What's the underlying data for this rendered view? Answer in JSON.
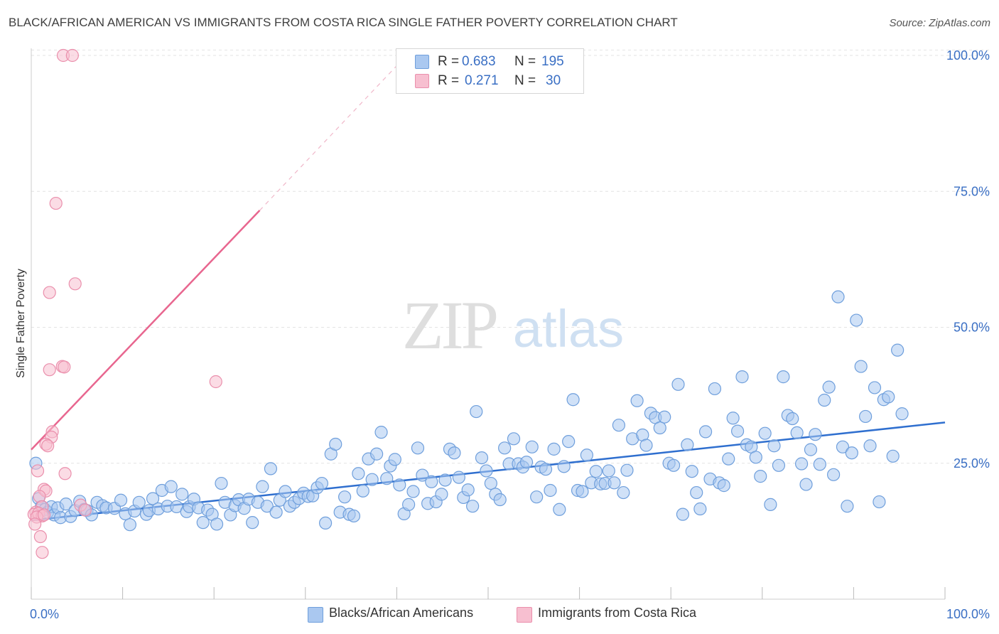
{
  "title": "BLACK/AFRICAN AMERICAN VS IMMIGRANTS FROM COSTA RICA SINGLE FATHER POVERTY CORRELATION CHART",
  "source": "Source: ZipAtlas.com",
  "watermark": {
    "zip": "ZIP",
    "atlas": "atlas"
  },
  "legend": {
    "rows": [
      {
        "r_label": "R =",
        "r_value": "0.683",
        "n_label": "N =",
        "n_value": "195"
      },
      {
        "r_label": "R =",
        "r_value": "0.271",
        "n_label": "N =",
        "n_value": "30"
      }
    ]
  },
  "bottom_legend": {
    "blue_label": "Blacks/African Americans",
    "pink_label": "Immigrants from Costa Rica"
  },
  "colors": {
    "blue_fill": "#aac8f0",
    "blue_stroke": "#6f9fdc",
    "blue_line": "#2f6fcf",
    "pink_fill": "#f7bfd0",
    "pink_stroke": "#ea8fac",
    "pink_line": "#e8668f",
    "axis_text": "#3a6fc4",
    "grid": "#e3e3e3"
  },
  "chart_data": {
    "type": "scatter",
    "title": "BLACK/AFRICAN AMERICAN VS IMMIGRANTS FROM COSTA RICA SINGLE FATHER POVERTY CORRELATION CHART",
    "xlabel": "",
    "ylabel": "Single Father Poverty",
    "xlim": [
      0,
      100
    ],
    "ylim": [
      0,
      102
    ],
    "x_tick_labels": [
      "0.0%",
      "100.0%"
    ],
    "y_ticks": [
      25,
      50,
      75,
      100
    ],
    "y_tick_labels": [
      "25.0%",
      "50.0%",
      "75.0%",
      "100.0%"
    ],
    "grid": true,
    "series": [
      {
        "name": "Blacks/African Americans",
        "color": "#6f9fdc",
        "trend": {
          "x": [
            0,
            100
          ],
          "y": [
            14.5,
            32.5
          ]
        },
        "points": [
          [
            0.5,
            25
          ],
          [
            0.8,
            18.5
          ],
          [
            1.1,
            17
          ],
          [
            1.5,
            16.5
          ],
          [
            1.8,
            16
          ],
          [
            2.2,
            17
          ],
          [
            2.5,
            15.5
          ],
          [
            2.9,
            16.8
          ],
          [
            3.2,
            15
          ],
          [
            3.8,
            17.5
          ],
          [
            4.3,
            15.2
          ],
          [
            4.8,
            16.3
          ],
          [
            5.3,
            18
          ],
          [
            5.8,
            16.5
          ],
          [
            6.1,
            16.3
          ],
          [
            6.6,
            15.5
          ],
          [
            7.2,
            17.8
          ],
          [
            7.8,
            17.2
          ],
          [
            8.2,
            16.8
          ],
          [
            9.1,
            16.7
          ],
          [
            9.8,
            18.2
          ],
          [
            10.3,
            15.7
          ],
          [
            10.8,
            13.7
          ],
          [
            11.3,
            16.2
          ],
          [
            11.8,
            17.8
          ],
          [
            12.6,
            15.6
          ],
          [
            12.9,
            16.3
          ],
          [
            13.3,
            18.5
          ],
          [
            13.9,
            16.6
          ],
          [
            14.3,
            20
          ],
          [
            14.9,
            17.1
          ],
          [
            15.3,
            20.7
          ],
          [
            15.9,
            17
          ],
          [
            16.5,
            19.3
          ],
          [
            17,
            16.1
          ],
          [
            17.3,
            17
          ],
          [
            17.8,
            18.4
          ],
          [
            18.3,
            16.8
          ],
          [
            18.8,
            14.1
          ],
          [
            19.3,
            16.4
          ],
          [
            19.8,
            15.6
          ],
          [
            20.3,
            13.8
          ],
          [
            20.8,
            21.3
          ],
          [
            21.2,
            17.8
          ],
          [
            21.8,
            15.5
          ],
          [
            22.3,
            17.2
          ],
          [
            22.7,
            18.3
          ],
          [
            23.3,
            16.7
          ],
          [
            23.8,
            18.4
          ],
          [
            24.2,
            14.1
          ],
          [
            24.8,
            17.8
          ],
          [
            25.3,
            20.7
          ],
          [
            25.8,
            17.1
          ],
          [
            26.2,
            24
          ],
          [
            26.8,
            16
          ],
          [
            27.2,
            18.2
          ],
          [
            27.8,
            19.8
          ],
          [
            28.3,
            17.1
          ],
          [
            28.8,
            17.8
          ],
          [
            29.3,
            18.5
          ],
          [
            29.8,
            19.5
          ],
          [
            30.3,
            18.9
          ],
          [
            30.8,
            19
          ],
          [
            31.3,
            20.5
          ],
          [
            31.8,
            21.3
          ],
          [
            32.2,
            14
          ],
          [
            32.8,
            26.7
          ],
          [
            33.3,
            28.5
          ],
          [
            33.8,
            16
          ],
          [
            34.3,
            18.8
          ],
          [
            34.8,
            15.6
          ],
          [
            35.3,
            15.3
          ],
          [
            35.8,
            23.1
          ],
          [
            36.3,
            19.9
          ],
          [
            36.9,
            25.8
          ],
          [
            37.3,
            22
          ],
          [
            37.8,
            26.7
          ],
          [
            38.3,
            30.7
          ],
          [
            38.9,
            22.2
          ],
          [
            39.3,
            24.5
          ],
          [
            39.8,
            25.7
          ],
          [
            40.3,
            21
          ],
          [
            40.8,
            15.7
          ],
          [
            41.3,
            17.4
          ],
          [
            41.8,
            19.8
          ],
          [
            42.3,
            27.8
          ],
          [
            42.8,
            22.8
          ],
          [
            43.4,
            17.6
          ],
          [
            43.8,
            21.6
          ],
          [
            44.3,
            17.9
          ],
          [
            44.9,
            19.3
          ],
          [
            45.3,
            21.9
          ],
          [
            45.8,
            27.6
          ],
          [
            46.3,
            26.9
          ],
          [
            46.8,
            22.4
          ],
          [
            47.3,
            18.7
          ],
          [
            47.8,
            20.1
          ],
          [
            48.3,
            17.1
          ],
          [
            48.7,
            34.5
          ],
          [
            49.3,
            26
          ],
          [
            49.8,
            23.6
          ],
          [
            50.3,
            21.3
          ],
          [
            50.8,
            19.3
          ],
          [
            51.3,
            18.3
          ],
          [
            51.8,
            27.8
          ],
          [
            52.3,
            24.9
          ],
          [
            52.8,
            29.5
          ],
          [
            53.3,
            24.9
          ],
          [
            53.8,
            24.3
          ],
          [
            54.2,
            25.2
          ],
          [
            54.8,
            28
          ],
          [
            55.3,
            18.8
          ],
          [
            55.8,
            24.3
          ],
          [
            56.3,
            23.9
          ],
          [
            56.8,
            20
          ],
          [
            57.2,
            27.6
          ],
          [
            57.8,
            16.5
          ],
          [
            58.3,
            24.4
          ],
          [
            58.8,
            29
          ],
          [
            59.3,
            36.7
          ],
          [
            59.8,
            20
          ],
          [
            60.3,
            19.8
          ],
          [
            60.8,
            26.5
          ],
          [
            61.3,
            21.4
          ],
          [
            61.8,
            23.5
          ],
          [
            62.3,
            21.2
          ],
          [
            62.8,
            21.3
          ],
          [
            63.2,
            23.6
          ],
          [
            63.8,
            21.4
          ],
          [
            64.3,
            32
          ],
          [
            64.8,
            19.6
          ],
          [
            65.2,
            23.7
          ],
          [
            65.8,
            29.5
          ],
          [
            66.3,
            36.5
          ],
          [
            66.9,
            30.2
          ],
          [
            67.3,
            28.3
          ],
          [
            67.8,
            34.2
          ],
          [
            68.3,
            33.4
          ],
          [
            68.8,
            31.5
          ],
          [
            69.3,
            33.5
          ],
          [
            69.8,
            25
          ],
          [
            70.3,
            24.6
          ],
          [
            70.8,
            39.5
          ],
          [
            71.3,
            15.6
          ],
          [
            71.8,
            28.4
          ],
          [
            72.3,
            23.5
          ],
          [
            72.8,
            19.6
          ],
          [
            73.2,
            16.6
          ],
          [
            73.8,
            30.8
          ],
          [
            74.3,
            22.1
          ],
          [
            74.8,
            38.7
          ],
          [
            75.3,
            21.4
          ],
          [
            75.8,
            20.9
          ],
          [
            76.3,
            25.8
          ],
          [
            76.8,
            33.3
          ],
          [
            77.3,
            30.9
          ],
          [
            77.8,
            40.9
          ],
          [
            78.3,
            28.4
          ],
          [
            78.8,
            28
          ],
          [
            79.3,
            26.1
          ],
          [
            79.8,
            22.6
          ],
          [
            80.3,
            30.5
          ],
          [
            80.9,
            17.4
          ],
          [
            81.3,
            28.2
          ],
          [
            81.8,
            24.6
          ],
          [
            82.3,
            40.9
          ],
          [
            82.8,
            33.8
          ],
          [
            83.3,
            33.2
          ],
          [
            83.8,
            30.6
          ],
          [
            84.3,
            24.9
          ],
          [
            84.8,
            21.1
          ],
          [
            85.3,
            27.5
          ],
          [
            85.8,
            30.3
          ],
          [
            86.3,
            24.8
          ],
          [
            86.8,
            36.6
          ],
          [
            87.3,
            39
          ],
          [
            87.8,
            22.9
          ],
          [
            88.3,
            55.6
          ],
          [
            88.8,
            28
          ],
          [
            89.3,
            17.1
          ],
          [
            89.8,
            26.9
          ],
          [
            90.3,
            51.3
          ],
          [
            90.8,
            42.8
          ],
          [
            91.3,
            33.6
          ],
          [
            91.8,
            28.2
          ],
          [
            92.3,
            38.9
          ],
          [
            92.8,
            17.9
          ],
          [
            93.3,
            36.7
          ],
          [
            93.8,
            37.2
          ],
          [
            94.3,
            26.3
          ],
          [
            94.8,
            45.8
          ],
          [
            95.3,
            34.1
          ]
        ]
      },
      {
        "name": "Immigrants from Costa Rica",
        "color": "#ea8fac",
        "trend": {
          "x": [
            0,
            25
          ],
          "y": [
            27.5,
            71.5
          ]
        },
        "trend_ext": {
          "x": [
            25,
            40.5
          ],
          "y": [
            71.5,
            99
          ]
        },
        "points": [
          [
            3.5,
            100
          ],
          [
            4.5,
            100
          ],
          [
            2.7,
            72.8
          ],
          [
            4.8,
            58
          ],
          [
            2,
            56.4
          ],
          [
            2,
            42.2
          ],
          [
            3.4,
            42.8
          ],
          [
            3.6,
            42.7
          ],
          [
            20.2,
            40
          ],
          [
            2.3,
            30.8
          ],
          [
            2.2,
            29.8
          ],
          [
            1.6,
            28.5
          ],
          [
            1.8,
            28.2
          ],
          [
            3.7,
            23.1
          ],
          [
            0.7,
            23.6
          ],
          [
            1.4,
            20.2
          ],
          [
            1.6,
            19.9
          ],
          [
            0.9,
            18.9
          ],
          [
            1.2,
            17
          ],
          [
            5.4,
            17.3
          ],
          [
            0.5,
            16
          ],
          [
            0.3,
            15.6
          ],
          [
            0.8,
            15.8
          ],
          [
            1.2,
            15.3
          ],
          [
            0.6,
            15.1
          ],
          [
            1.4,
            15.5
          ],
          [
            5.9,
            16.4
          ],
          [
            0.4,
            13.8
          ],
          [
            1,
            11.5
          ],
          [
            1.2,
            8.6
          ]
        ]
      }
    ]
  }
}
